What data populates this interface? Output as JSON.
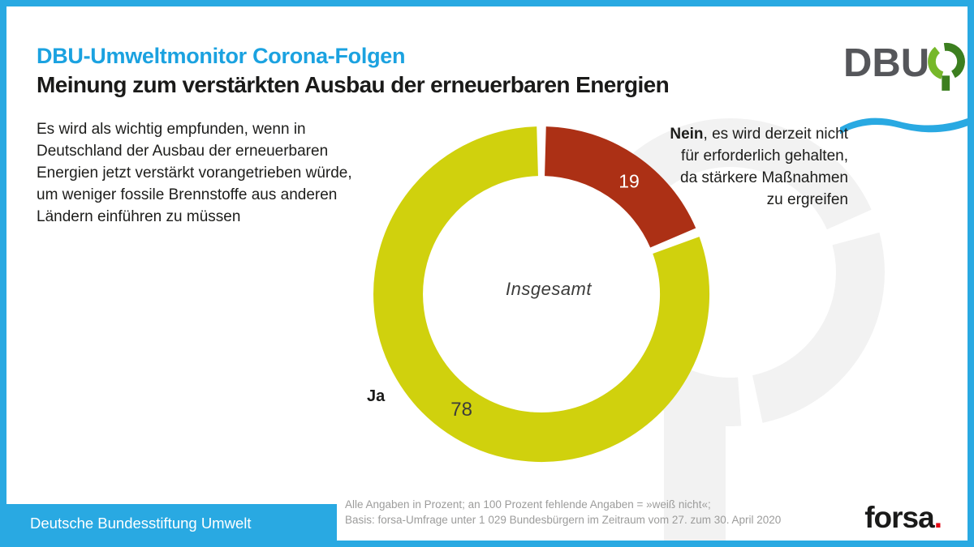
{
  "header": {
    "title": "DBU-Umweltmonitor Corona-Folgen",
    "subtitle": "Meinung zum verstärkten Ausbau der erneuerbaren Energien"
  },
  "brand": {
    "dbu_logo_text": "DBU",
    "org_name": "Deutsche Bundesstiftung Umwelt",
    "agency_name": "forsa",
    "agency_dot": "."
  },
  "question": {
    "lines": [
      "Es wird als wichtig empfunden, wenn in",
      "Deutschland der Ausbau der erneuerbaren",
      "Energien jetzt verstärkt vorangetrieben würde,",
      "um weniger fossile Brennstoffe aus anderen",
      "Ländern einführen zu müssen"
    ]
  },
  "nein_annotation": {
    "bold": "Nein",
    "line1_rest": ", es wird derzeit nicht",
    "line2": "für erforderlich gehalten,",
    "line3": "da stärkere Maßnahmen",
    "line4": "zu ergreifen"
  },
  "ja_annotation": {
    "label": "Ja"
  },
  "chart_data": {
    "type": "pie",
    "donut": true,
    "unit": "percent",
    "center_label": "Insgesamt",
    "series": [
      {
        "label": "Ja",
        "value": 78,
        "color": "#d0d10d"
      },
      {
        "label": "Nein",
        "value": 19,
        "color": "#ac3015"
      }
    ],
    "layout": {
      "start_angle_deg": 0,
      "clockwise": true,
      "segment_gap_deg": 1.6
    }
  },
  "footer": {
    "note_line1": "Alle Angaben in Prozent; an 100 Prozent fehlende Angaben = »weiß nicht«;",
    "note_line2": "Basis: forsa-Umfrage unter 1 029 Bundesbürgern im Zeitraum vom 27. zum 30. April 2020"
  },
  "colors": {
    "frame_blue": "#29a9e2",
    "title_blue": "#1ba2e0",
    "yes_green": "#d0d10d",
    "no_red": "#ac3015",
    "watermark_gray": "#f2f2f2",
    "footnote_gray": "#9c9c9b",
    "forsa_dot_red": "#e30613"
  }
}
